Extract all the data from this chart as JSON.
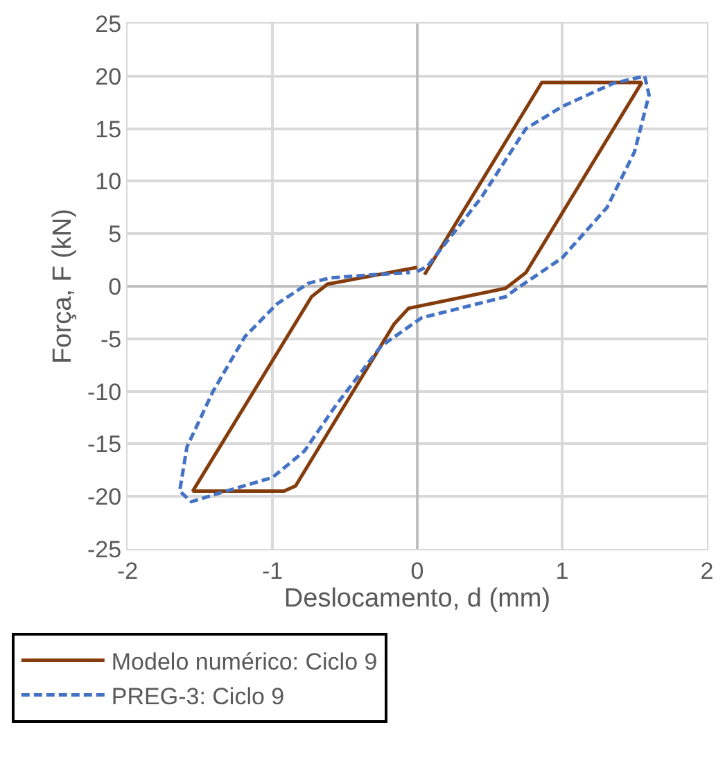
{
  "chart_data": {
    "type": "line",
    "xlabel": "Deslocamento, d (mm)",
    "ylabel": "Força, F (kN)",
    "xlim": [
      -2,
      2
    ],
    "xticks": [
      -2,
      -1,
      0,
      1,
      2
    ],
    "ylim": [
      -25,
      25
    ],
    "yticks": [
      -25,
      -20,
      -15,
      -10,
      -5,
      0,
      5,
      10,
      15,
      20,
      25
    ],
    "grid": true,
    "legend": "bottom",
    "marker": "none",
    "series": [
      {
        "name": "Modelo numérico: Ciclo 9",
        "color": "#843c0c",
        "line_style": "solid",
        "x": [
          0.05,
          0.86,
          1.55,
          0.75,
          0.61,
          -0.06,
          -0.16,
          -0.84,
          -0.92,
          -1.55,
          -0.73,
          -0.62,
          0.0
        ],
        "values": [
          1.1,
          19.4,
          19.4,
          1.3,
          -0.2,
          -2.1,
          -3.6,
          -19.0,
          -19.5,
          -19.5,
          -1.0,
          0.2,
          1.8
        ]
      },
      {
        "name": "PREG-3: Ciclo 9",
        "color": "#4472c4",
        "line_style": "dashed",
        "x": [
          0.0,
          0.07,
          0.44,
          0.75,
          1.0,
          1.35,
          1.57,
          1.6,
          1.5,
          1.31,
          1.0,
          0.69,
          0.61,
          0.03,
          -0.25,
          -0.56,
          -0.78,
          -1.0,
          -1.37,
          -1.56,
          -1.64,
          -1.59,
          -1.41,
          -1.19,
          -0.97,
          -0.75,
          -0.6,
          -0.3,
          -0.05
        ],
        "values": [
          1.4,
          1.9,
          8.4,
          15.0,
          17.1,
          19.3,
          20.0,
          18.2,
          12.8,
          7.5,
          2.7,
          -0.2,
          -1.0,
          -3.0,
          -5.7,
          -11.3,
          -15.7,
          -18.2,
          -19.7,
          -20.5,
          -19.5,
          -15.3,
          -10.0,
          -4.8,
          -1.7,
          0.3,
          0.8,
          1.1,
          1.3
        ]
      }
    ]
  }
}
